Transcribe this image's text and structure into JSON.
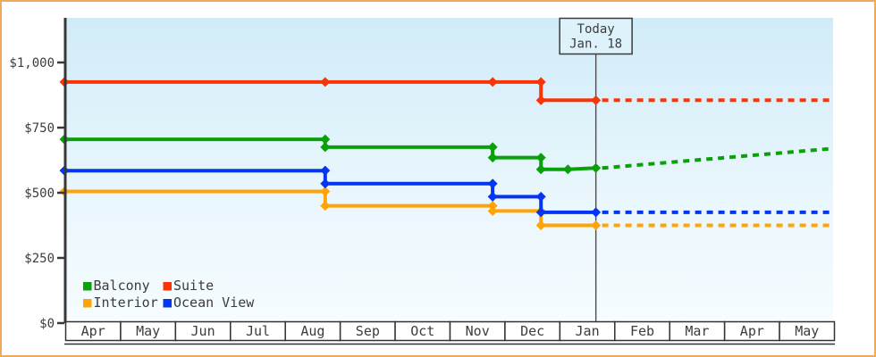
{
  "colors": {
    "page_border": "#eda95e",
    "axis": "#383838",
    "text": "#3c3c3c",
    "plot_bg_top": "#d0ebf8",
    "plot_bg_mid": "#e8f6fc",
    "plot_bg_bottom": "#f6fcff",
    "today_box_bg": "#ddf2fb",
    "today_line": "#4d4d4d",
    "month_box_bg": "#ffffff"
  },
  "chart_data": {
    "type": "line",
    "description": "Cabin price history by category with dotted future projections",
    "x_axis": {
      "months": [
        "Apr",
        "May",
        "Jun",
        "Jul",
        "Aug",
        "Sep",
        "Oct",
        "Nov",
        "Dec",
        "Jan",
        "Feb",
        "Mar",
        "Apr",
        "May"
      ],
      "range_months": 14
    },
    "y_axis": {
      "ticks": [
        {
          "label": "$0",
          "value": 0
        },
        {
          "label": "$250",
          "value": 250
        },
        {
          "label": "$500",
          "value": 500
        },
        {
          "label": "$750",
          "value": 750
        },
        {
          "label": "$1,000",
          "value": 1000
        }
      ],
      "min": 0,
      "max": 1170,
      "grid": false
    },
    "today": {
      "line1": "Today",
      "line2": "Jan. 18",
      "m": 9.68
    },
    "series": [
      {
        "name": "Suite",
        "color": "#f93505",
        "points": [
          [
            0,
            925
          ],
          [
            4.75,
            925
          ],
          [
            7.8,
            925
          ],
          [
            8.68,
            925
          ],
          [
            8.68,
            855
          ],
          [
            9.68,
            855
          ]
        ],
        "projection": [
          [
            9.68,
            855
          ],
          [
            14,
            855
          ]
        ]
      },
      {
        "name": "Balcony",
        "color": "#0aa00a",
        "points": [
          [
            0,
            705
          ],
          [
            4.75,
            705
          ],
          [
            4.75,
            675
          ],
          [
            7.8,
            675
          ],
          [
            7.8,
            635
          ],
          [
            8.68,
            635
          ],
          [
            8.68,
            590
          ],
          [
            9.17,
            590
          ],
          [
            9.68,
            595
          ]
        ],
        "projection": [
          [
            9.68,
            595
          ],
          [
            14,
            670
          ]
        ]
      },
      {
        "name": "Interior",
        "color": "#ffa408",
        "points": [
          [
            0,
            505
          ],
          [
            4.75,
            505
          ],
          [
            4.75,
            450
          ],
          [
            7.8,
            450
          ],
          [
            7.8,
            430
          ],
          [
            8.68,
            430
          ],
          [
            8.68,
            375
          ],
          [
            9.68,
            375
          ]
        ],
        "projection": [
          [
            9.68,
            375
          ],
          [
            14,
            375
          ]
        ]
      },
      {
        "name": "Ocean View",
        "color": "#0435f0",
        "points": [
          [
            0,
            585
          ],
          [
            4.75,
            585
          ],
          [
            4.75,
            535
          ],
          [
            7.8,
            535
          ],
          [
            7.8,
            485
          ],
          [
            8.68,
            485
          ],
          [
            8.68,
            425
          ],
          [
            9.68,
            425
          ]
        ],
        "projection": [
          [
            9.68,
            425
          ],
          [
            14,
            425
          ]
        ]
      }
    ],
    "legend": [
      {
        "items": [
          "Balcony",
          "Suite"
        ]
      },
      {
        "items": [
          "Interior",
          "Ocean View"
        ]
      }
    ],
    "legend_position": "bottom-left"
  }
}
